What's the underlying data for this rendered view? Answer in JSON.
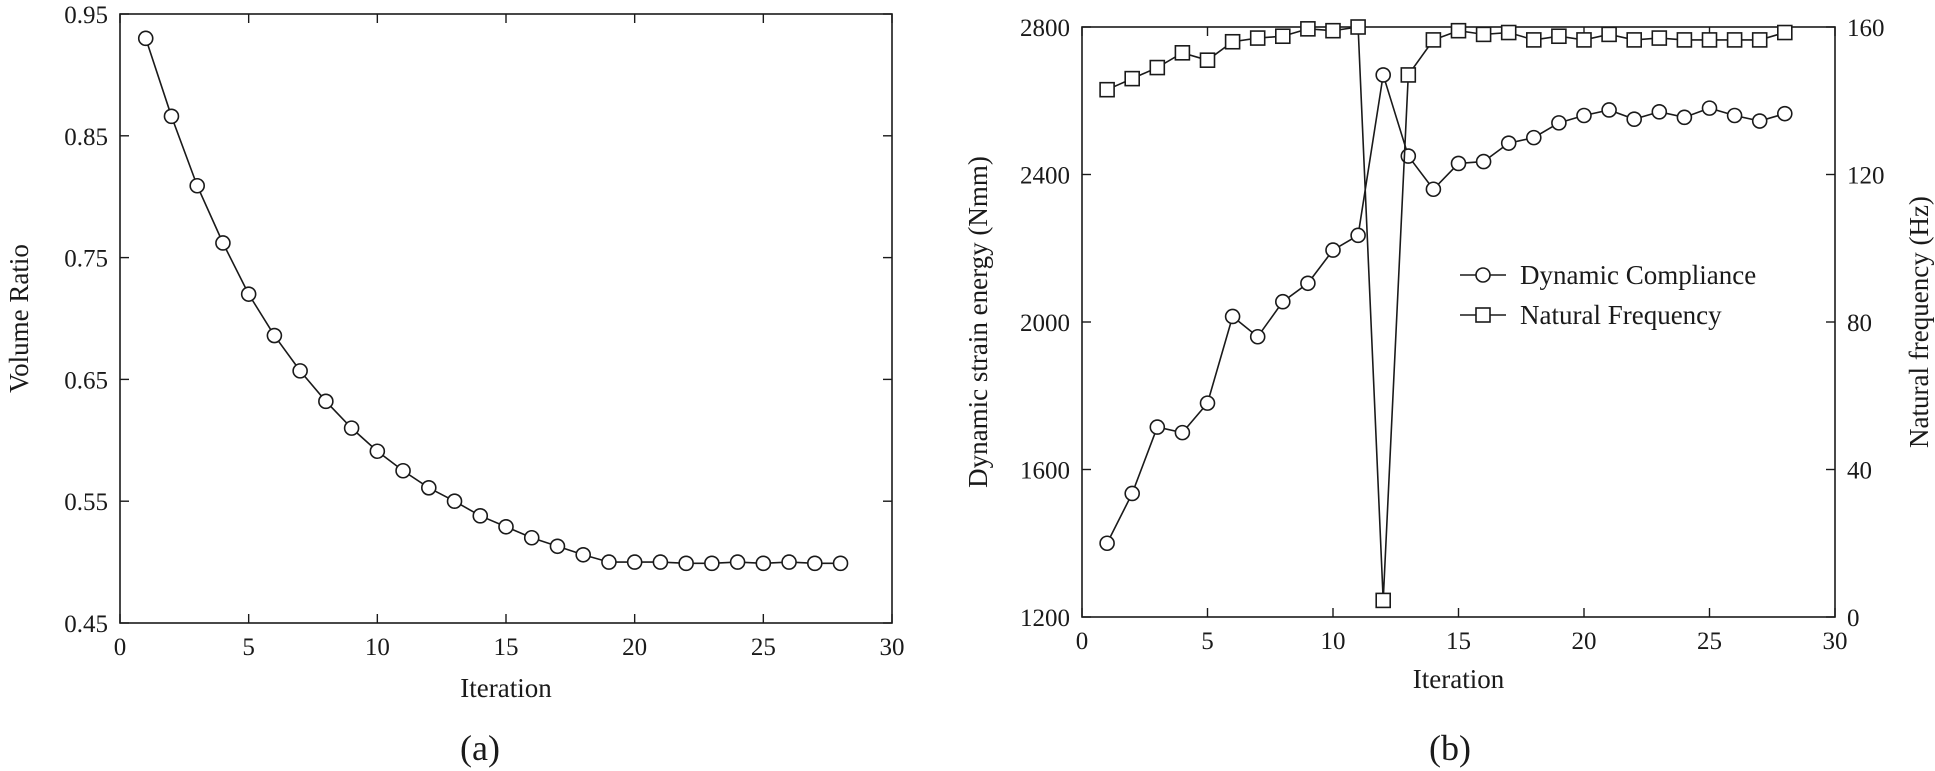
{
  "chart_data": [
    {
      "type": "line",
      "panel_label": "(a)",
      "xlabel": "Iteration",
      "ylabel": "Volume Ratio",
      "xlim": [
        0,
        30
      ],
      "ylim": [
        0.45,
        0.95
      ],
      "xticks": [
        0,
        5,
        10,
        15,
        20,
        25,
        30
      ],
      "xtick_labels": [
        "0",
        "5",
        "10",
        "15",
        "20",
        "25",
        "30"
      ],
      "yticks": [
        0.45,
        0.55,
        0.65,
        0.75,
        0.85,
        0.95
      ],
      "ytick_labels": [
        "0.45",
        "0.55",
        "0.65",
        "0.75",
        "0.85",
        "0.95"
      ],
      "grid": false,
      "series": [
        {
          "marker": "circle",
          "x": [
            1,
            2,
            3,
            4,
            5,
            6,
            7,
            8,
            9,
            10,
            11,
            12,
            13,
            14,
            15,
            16,
            17,
            18,
            19,
            20,
            21,
            22,
            23,
            24,
            25,
            26,
            27,
            28
          ],
          "values": [
            0.93,
            0.866,
            0.809,
            0.762,
            0.72,
            0.686,
            0.657,
            0.632,
            0.61,
            0.591,
            0.575,
            0.561,
            0.55,
            0.538,
            0.529,
            0.52,
            0.513,
            0.506,
            0.5,
            0.5,
            0.5,
            0.499,
            0.499,
            0.5,
            0.499,
            0.5,
            0.499,
            0.499
          ]
        }
      ]
    },
    {
      "type": "line",
      "panel_label": "(b)",
      "xlabel": "Iteration",
      "ylabel": "Dynamic strain energy (Nmm)",
      "y2label": "Natural frequency (Hz)",
      "xlim": [
        0,
        30
      ],
      "ylim": [
        1200,
        2800
      ],
      "y2lim": [
        0,
        160
      ],
      "xticks": [
        0,
        5,
        10,
        15,
        20,
        25,
        30
      ],
      "xtick_labels": [
        "0",
        "5",
        "10",
        "15",
        "20",
        "25",
        "30"
      ],
      "yticks": [
        1200,
        1600,
        2000,
        2400,
        2800
      ],
      "ytick_labels": [
        "1200",
        "1600",
        "2000",
        "2400",
        "2800"
      ],
      "y2ticks": [
        0,
        40,
        80,
        120,
        160
      ],
      "y2tick_labels": [
        "0",
        "40",
        "80",
        "120",
        "160"
      ],
      "grid": false,
      "legend_position": "right",
      "series": [
        {
          "name": "Dynamic Compliance",
          "axis": "left",
          "marker": "circle",
          "x": [
            1,
            2,
            3,
            4,
            5,
            6,
            7,
            8,
            9,
            10,
            11,
            12,
            13,
            14,
            15,
            16,
            17,
            18,
            19,
            20,
            21,
            22,
            23,
            24,
            25,
            26,
            27,
            28
          ],
          "values": [
            1400,
            1535,
            1715,
            1700,
            1780,
            2015,
            1960,
            2055,
            2105,
            2195,
            2235,
            2670,
            2450,
            2360,
            2430,
            2435,
            2485,
            2500,
            2540,
            2560,
            2575,
            2550,
            2570,
            2555,
            2580,
            2560,
            2545,
            2565
          ]
        },
        {
          "name": "Natural Frequency",
          "axis": "right",
          "marker": "square",
          "x": [
            1,
            2,
            3,
            4,
            5,
            6,
            7,
            8,
            9,
            10,
            11,
            12,
            13,
            14,
            15,
            16,
            17,
            18,
            19,
            20,
            21,
            22,
            23,
            24,
            25,
            26,
            27,
            28
          ],
          "values": [
            143,
            146,
            149,
            153,
            151,
            156,
            157,
            157.5,
            159.5,
            159,
            160,
            4.5,
            147,
            156.5,
            159,
            158,
            158.5,
            156.5,
            157.5,
            156.5,
            158,
            156.5,
            157,
            156.5,
            156.5,
            156.5,
            156.5,
            158.5
          ]
        }
      ]
    }
  ]
}
